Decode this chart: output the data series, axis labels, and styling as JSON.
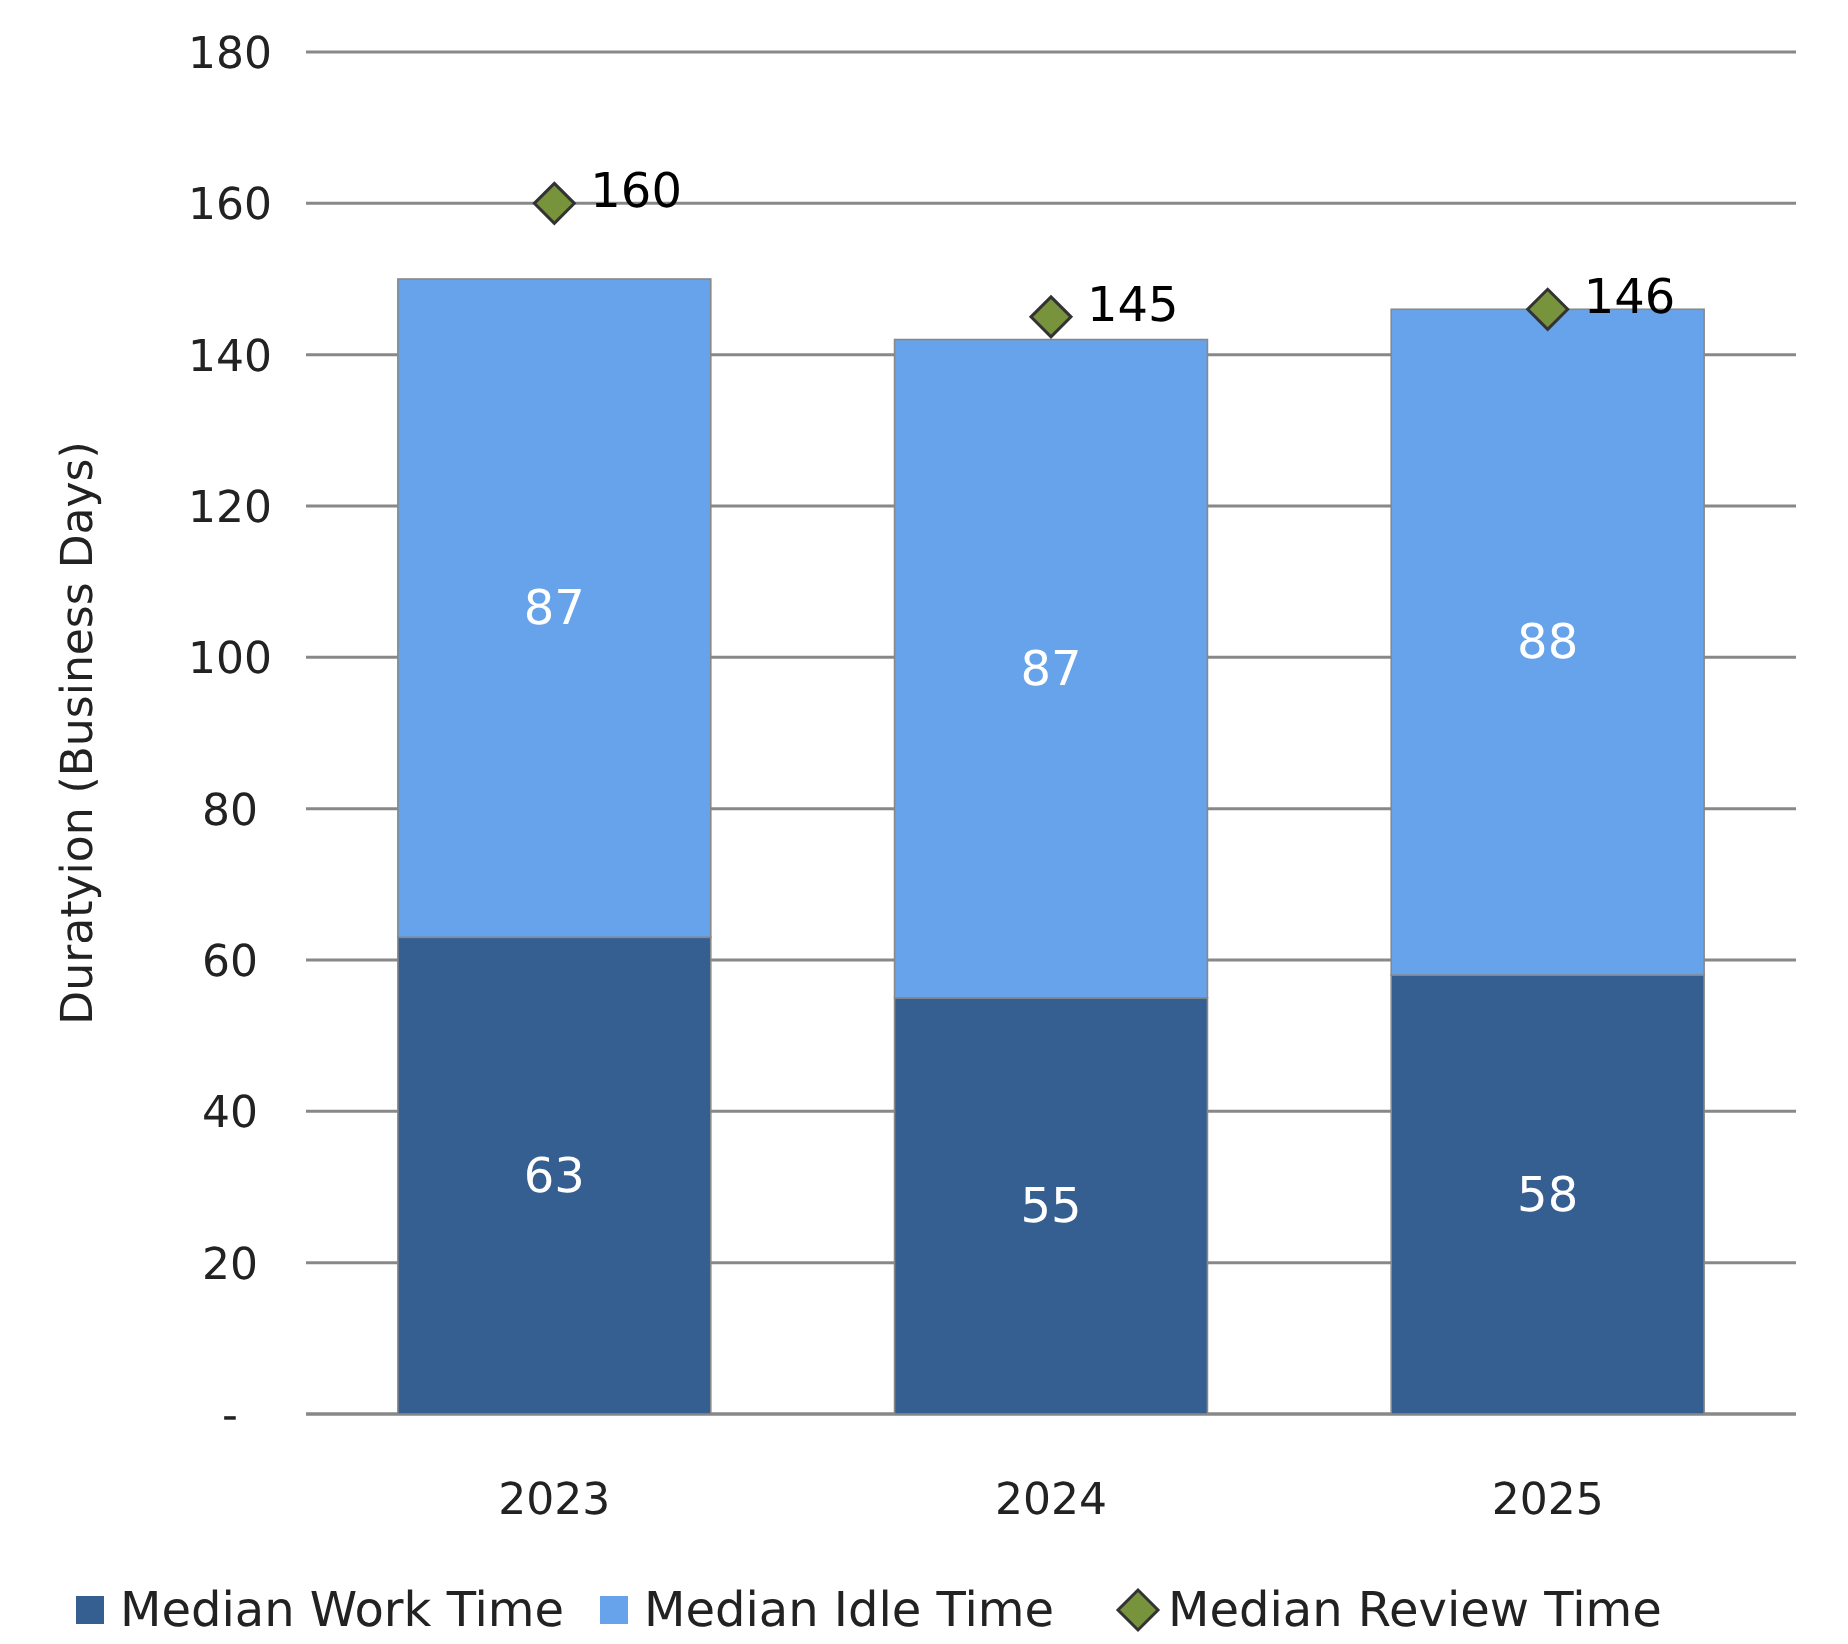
{
  "chart_data": {
    "type": "bar",
    "stacked": true,
    "ylabel": "Duratyion (Business Days)",
    "categories": [
      "2023",
      "2024",
      "2025"
    ],
    "series": [
      {
        "name": "Median Work Time",
        "color": "#365f91",
        "values": [
          63,
          55,
          58
        ]
      },
      {
        "name": "Median Idle Time",
        "color": "#67a3ea",
        "values": [
          87,
          87,
          88
        ]
      },
      {
        "name": "Median Review Time",
        "color": "#77933c",
        "type": "scatter",
        "marker": "diamond",
        "values": [
          160,
          145,
          146
        ]
      }
    ],
    "ylim": [
      0,
      180
    ],
    "yticks": [
      {
        "value": 0,
        "label": "-"
      },
      20,
      40,
      60,
      80,
      100,
      120,
      140,
      160,
      180
    ],
    "grid": "y",
    "legend": "bottom",
    "data_labels": true
  }
}
